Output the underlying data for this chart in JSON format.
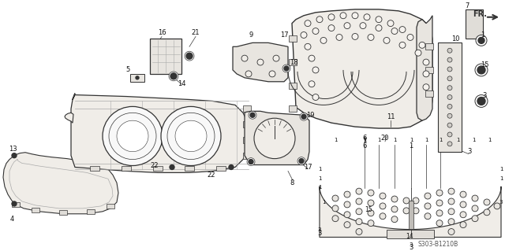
{
  "background_color": "#ffffff",
  "diagram_code": "S303-B1210B",
  "fr_label": "FR.",
  "figsize": [
    6.4,
    3.19
  ],
  "dpi": 100,
  "line_color": "#333333",
  "light_gray": "#aaaaaa",
  "fill_gray": "#d8d5d0"
}
